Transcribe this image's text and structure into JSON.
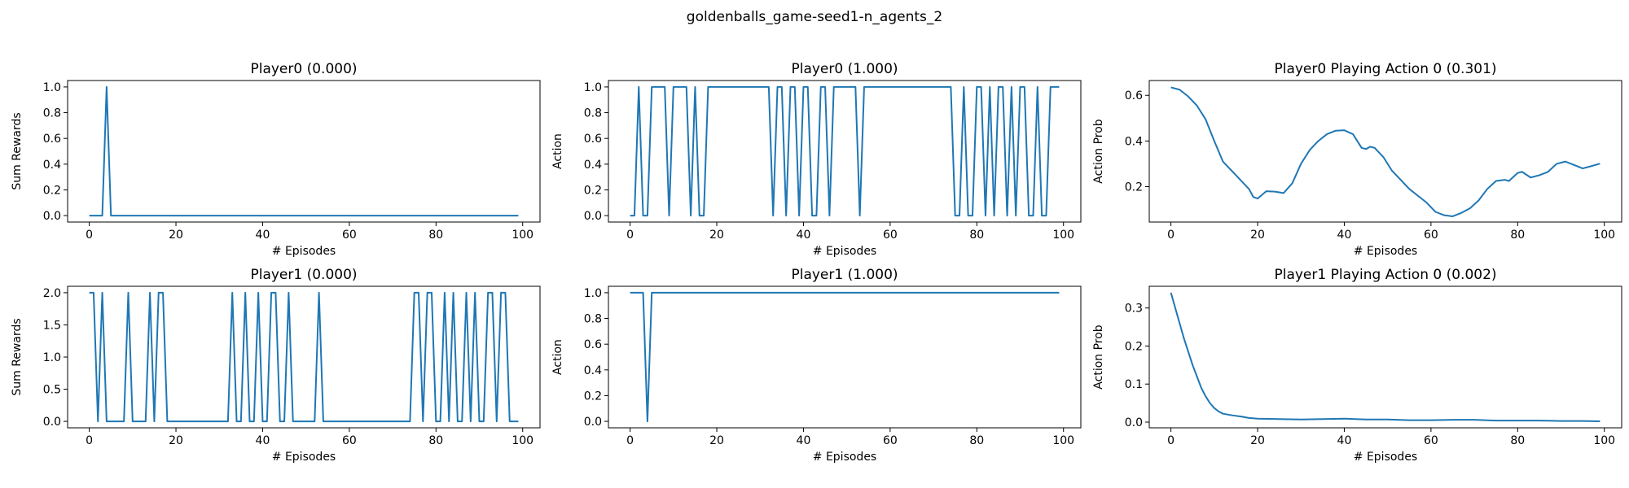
{
  "suptitle": "goldenballs_game-seed1-n_agents_2",
  "chart_data": [
    {
      "type": "line",
      "title": "Player0 (0.000)",
      "xlabel": "# Episodes",
      "ylabel": "Sum Rewards",
      "xlim": [
        -5,
        104
      ],
      "ylim": [
        -0.05,
        1.05
      ],
      "xticks": [
        0,
        20,
        40,
        60,
        80,
        100
      ],
      "xtick_labels": [
        "0",
        "20",
        "40",
        "60",
        "80",
        "100"
      ],
      "yticks": [
        0.0,
        0.2,
        0.4,
        0.6,
        0.8,
        1.0
      ],
      "ytick_labels": [
        "0.0",
        "0.2",
        "0.4",
        "0.6",
        "0.8",
        "1.0"
      ],
      "grid": false,
      "series": [
        {
          "color": "#1f77b4",
          "segments": [
            [
              0,
              3,
              0
            ],
            [
              4,
              4,
              1
            ],
            [
              5,
              99,
              0
            ]
          ]
        }
      ]
    },
    {
      "type": "line",
      "title": "Player0 (1.000)",
      "xlabel": "# Episodes",
      "ylabel": "Action",
      "xlim": [
        -5,
        104
      ],
      "ylim": [
        -0.05,
        1.05
      ],
      "xticks": [
        0,
        20,
        40,
        60,
        80,
        100
      ],
      "xtick_labels": [
        "0",
        "20",
        "40",
        "60",
        "80",
        "100"
      ],
      "yticks": [
        0.0,
        0.2,
        0.4,
        0.6,
        0.8,
        1.0
      ],
      "ytick_labels": [
        "0.0",
        "0.2",
        "0.4",
        "0.6",
        "0.8",
        "1.0"
      ],
      "grid": false,
      "series": [
        {
          "color": "#1f77b4",
          "segments": [
            [
              0,
              1,
              0
            ],
            [
              2,
              2,
              1
            ],
            [
              3,
              4,
              0
            ],
            [
              5,
              8,
              1
            ],
            [
              9,
              9,
              0
            ],
            [
              10,
              13,
              1
            ],
            [
              14,
              14,
              0
            ],
            [
              15,
              15,
              1
            ],
            [
              16,
              17,
              0
            ],
            [
              18,
              32,
              1
            ],
            [
              33,
              33,
              0
            ],
            [
              34,
              35,
              1
            ],
            [
              36,
              36,
              0
            ],
            [
              37,
              38,
              1
            ],
            [
              39,
              39,
              0
            ],
            [
              40,
              41,
              1
            ],
            [
              42,
              43,
              0
            ],
            [
              44,
              45,
              1
            ],
            [
              46,
              46,
              0
            ],
            [
              47,
              52,
              1
            ],
            [
              53,
              53,
              0
            ],
            [
              54,
              74,
              1
            ],
            [
              75,
              76,
              0
            ],
            [
              77,
              77,
              1
            ],
            [
              78,
              79,
              0
            ],
            [
              80,
              81,
              1
            ],
            [
              82,
              82,
              0
            ],
            [
              83,
              83,
              1
            ],
            [
              84,
              84,
              0
            ],
            [
              85,
              86,
              1
            ],
            [
              87,
              87,
              0
            ],
            [
              88,
              88,
              1
            ],
            [
              89,
              89,
              0
            ],
            [
              90,
              91,
              1
            ],
            [
              92,
              93,
              0
            ],
            [
              94,
              94,
              1
            ],
            [
              95,
              96,
              0
            ],
            [
              97,
              99,
              1
            ]
          ]
        }
      ]
    },
    {
      "type": "line",
      "title": "Player0 Playing Action 0 (0.301)",
      "xlabel": "# Episodes",
      "ylabel": "Action Prob",
      "xlim": [
        -5,
        104
      ],
      "ylim": [
        0.045,
        0.665
      ],
      "xticks": [
        0,
        20,
        40,
        60,
        80,
        100
      ],
      "xtick_labels": [
        "0",
        "20",
        "40",
        "60",
        "80",
        "100"
      ],
      "yticks": [
        0.2,
        0.4,
        0.6
      ],
      "ytick_labels": [
        "0.2",
        "0.4",
        "0.6"
      ],
      "grid": false,
      "series": [
        {
          "color": "#1f77b4",
          "points": [
            [
              0,
              0.635
            ],
            [
              2,
              0.625
            ],
            [
              4,
              0.595
            ],
            [
              6,
              0.555
            ],
            [
              8,
              0.495
            ],
            [
              10,
              0.4
            ],
            [
              12,
              0.31
            ],
            [
              14,
              0.27
            ],
            [
              16,
              0.23
            ],
            [
              18,
              0.19
            ],
            [
              19,
              0.155
            ],
            [
              20,
              0.148
            ],
            [
              22,
              0.18
            ],
            [
              24,
              0.178
            ],
            [
              26,
              0.172
            ],
            [
              28,
              0.215
            ],
            [
              30,
              0.3
            ],
            [
              32,
              0.36
            ],
            [
              34,
              0.4
            ],
            [
              36,
              0.43
            ],
            [
              38,
              0.445
            ],
            [
              40,
              0.447
            ],
            [
              42,
              0.43
            ],
            [
              44,
              0.37
            ],
            [
              45,
              0.365
            ],
            [
              46,
              0.375
            ],
            [
              47,
              0.37
            ],
            [
              49,
              0.33
            ],
            [
              51,
              0.27
            ],
            [
              53,
              0.23
            ],
            [
              55,
              0.19
            ],
            [
              57,
              0.16
            ],
            [
              59,
              0.13
            ],
            [
              61,
              0.09
            ],
            [
              63,
              0.075
            ],
            [
              65,
              0.07
            ],
            [
              67,
              0.085
            ],
            [
              69,
              0.105
            ],
            [
              71,
              0.14
            ],
            [
              73,
              0.19
            ],
            [
              75,
              0.225
            ],
            [
              77,
              0.23
            ],
            [
              78,
              0.225
            ],
            [
              80,
              0.26
            ],
            [
              81,
              0.265
            ],
            [
              83,
              0.24
            ],
            [
              85,
              0.25
            ],
            [
              87,
              0.265
            ],
            [
              89,
              0.3
            ],
            [
              91,
              0.31
            ],
            [
              93,
              0.295
            ],
            [
              95,
              0.28
            ],
            [
              97,
              0.29
            ],
            [
              99,
              0.301
            ]
          ]
        }
      ]
    },
    {
      "type": "line",
      "title": "Player1 (0.000)",
      "xlabel": "# Episodes",
      "ylabel": "Sum Rewards",
      "xlim": [
        -5,
        104
      ],
      "ylim": [
        -0.1,
        2.1
      ],
      "xticks": [
        0,
        20,
        40,
        60,
        80,
        100
      ],
      "xtick_labels": [
        "0",
        "20",
        "40",
        "60",
        "80",
        "100"
      ],
      "yticks": [
        0.0,
        0.5,
        1.0,
        1.5,
        2.0
      ],
      "ytick_labels": [
        "0.0",
        "0.5",
        "1.0",
        "1.5",
        "2.0"
      ],
      "grid": false,
      "series": [
        {
          "color": "#1f77b4",
          "segments": [
            [
              0,
              1,
              2
            ],
            [
              2,
              2,
              0
            ],
            [
              3,
              3,
              2
            ],
            [
              4,
              8,
              0
            ],
            [
              9,
              9,
              2
            ],
            [
              10,
              13,
              0
            ],
            [
              14,
              14,
              2
            ],
            [
              15,
              15,
              0
            ],
            [
              16,
              17,
              2
            ],
            [
              18,
              32,
              0
            ],
            [
              33,
              33,
              2
            ],
            [
              34,
              35,
              0
            ],
            [
              36,
              36,
              2
            ],
            [
              37,
              38,
              0
            ],
            [
              39,
              39,
              2
            ],
            [
              40,
              41,
              0
            ],
            [
              42,
              43,
              2
            ],
            [
              44,
              45,
              0
            ],
            [
              46,
              46,
              2
            ],
            [
              47,
              52,
              0
            ],
            [
              53,
              53,
              2
            ],
            [
              54,
              74,
              0
            ],
            [
              75,
              76,
              2
            ],
            [
              77,
              77,
              0
            ],
            [
              78,
              79,
              2
            ],
            [
              80,
              81,
              0
            ],
            [
              82,
              82,
              2
            ],
            [
              83,
              83,
              0
            ],
            [
              84,
              84,
              2
            ],
            [
              85,
              86,
              0
            ],
            [
              87,
              87,
              2
            ],
            [
              88,
              88,
              0
            ],
            [
              89,
              89,
              2
            ],
            [
              90,
              91,
              0
            ],
            [
              92,
              93,
              2
            ],
            [
              94,
              94,
              0
            ],
            [
              95,
              96,
              2
            ],
            [
              97,
              99,
              0
            ]
          ]
        }
      ]
    },
    {
      "type": "line",
      "title": "Player1 (1.000)",
      "xlabel": "# Episodes",
      "ylabel": "Action",
      "xlim": [
        -5,
        104
      ],
      "ylim": [
        -0.05,
        1.05
      ],
      "xticks": [
        0,
        20,
        40,
        60,
        80,
        100
      ],
      "xtick_labels": [
        "0",
        "20",
        "40",
        "60",
        "80",
        "100"
      ],
      "yticks": [
        0.0,
        0.2,
        0.4,
        0.6,
        0.8,
        1.0
      ],
      "ytick_labels": [
        "0.0",
        "0.2",
        "0.4",
        "0.6",
        "0.8",
        "1.0"
      ],
      "grid": false,
      "series": [
        {
          "color": "#1f77b4",
          "segments": [
            [
              0,
              3,
              1
            ],
            [
              4,
              4,
              0
            ],
            [
              5,
              99,
              1
            ]
          ]
        }
      ]
    },
    {
      "type": "line",
      "title": "Player1 Playing Action 0 (0.002)",
      "xlabel": "# Episodes",
      "ylabel": "Action Prob",
      "xlim": [
        -5,
        104
      ],
      "ylim": [
        -0.015,
        0.357
      ],
      "xticks": [
        0,
        20,
        40,
        60,
        80,
        100
      ],
      "xtick_labels": [
        "0",
        "20",
        "40",
        "60",
        "80",
        "100"
      ],
      "yticks": [
        0.0,
        0.1,
        0.2,
        0.3
      ],
      "ytick_labels": [
        "0.0",
        "0.1",
        "0.2",
        "0.3"
      ],
      "grid": false,
      "series": [
        {
          "color": "#1f77b4",
          "points": [
            [
              0,
              0.34
            ],
            [
              1,
              0.3
            ],
            [
              2,
              0.26
            ],
            [
              3,
              0.22
            ],
            [
              4,
              0.185
            ],
            [
              5,
              0.15
            ],
            [
              6,
              0.12
            ],
            [
              7,
              0.09
            ],
            [
              8,
              0.068
            ],
            [
              9,
              0.05
            ],
            [
              10,
              0.037
            ],
            [
              11,
              0.028
            ],
            [
              12,
              0.022
            ],
            [
              14,
              0.018
            ],
            [
              16,
              0.015
            ],
            [
              18,
              0.011
            ],
            [
              20,
              0.009
            ],
            [
              25,
              0.008
            ],
            [
              30,
              0.007
            ],
            [
              35,
              0.008
            ],
            [
              40,
              0.009
            ],
            [
              45,
              0.007
            ],
            [
              50,
              0.007
            ],
            [
              55,
              0.005
            ],
            [
              60,
              0.005
            ],
            [
              65,
              0.006
            ],
            [
              70,
              0.006
            ],
            [
              75,
              0.004
            ],
            [
              80,
              0.004
            ],
            [
              85,
              0.004
            ],
            [
              90,
              0.003
            ],
            [
              95,
              0.003
            ],
            [
              99,
              0.002
            ]
          ]
        }
      ]
    }
  ]
}
